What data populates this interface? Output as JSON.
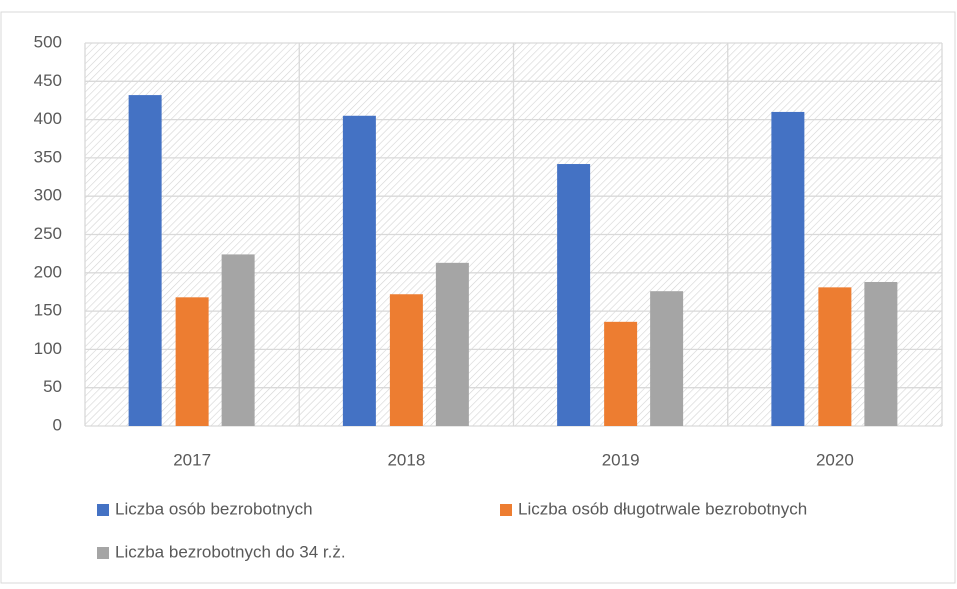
{
  "chart_data": {
    "type": "bar",
    "categories": [
      "2017",
      "2018",
      "2019",
      "2020"
    ],
    "series": [
      {
        "name": "Liczba osób bezrobotnych",
        "color": "#4472c4",
        "values": [
          432,
          405,
          342,
          410
        ]
      },
      {
        "name": "Liczba osób długotrwale bezrobotnych",
        "color": "#ed7d31",
        "values": [
          168,
          172,
          136,
          181
        ]
      },
      {
        "name": "Liczba bezrobotnych do 34 r.ż.",
        "color": "#a5a5a5",
        "values": [
          224,
          213,
          176,
          188
        ]
      }
    ],
    "ylim": [
      0,
      500
    ],
    "yticks": [
      0,
      50,
      100,
      150,
      200,
      250,
      300,
      350,
      400,
      450,
      500
    ],
    "grid": true
  }
}
